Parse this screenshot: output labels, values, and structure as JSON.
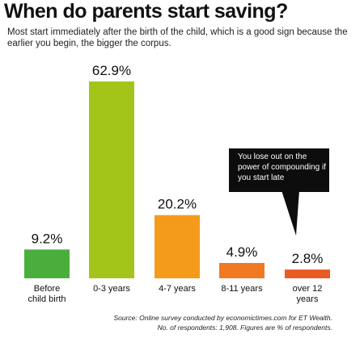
{
  "header": {
    "title": "When do parents start saving?",
    "subtitle": "Most start immediately after the birth of the child, which is a good sign because the earlier you begin, the bigger the corpus."
  },
  "callout": {
    "text": "You lose out on the power of compounding if you start late"
  },
  "footer": {
    "source_line": "Source: Online survey conducted by economictimes.com for ET Wealth.",
    "respondents_line": "No. of respondents: 1,908. Figures are % of respondents."
  },
  "chart_data": {
    "type": "bar",
    "title": "When do parents start saving?",
    "categories": [
      "Before child birth",
      "0-3 years",
      "4-7 years",
      "8-11 years",
      "over 12 years"
    ],
    "category_lines": [
      [
        "Before",
        "child birth"
      ],
      [
        "0-3 years"
      ],
      [
        "4-7 years"
      ],
      [
        "8-11 years"
      ],
      [
        "over 12",
        "years"
      ]
    ],
    "values": [
      9.2,
      62.9,
      20.2,
      4.9,
      2.8
    ],
    "value_labels": [
      "9.2%",
      "62.9%",
      "20.2%",
      "4.9%",
      "2.8%"
    ],
    "colors": [
      "#4aae3c",
      "#a3c51a",
      "#f49b1c",
      "#f07a21",
      "#ea5a23"
    ],
    "unit": "% of respondents",
    "ylim": [
      0,
      62.9
    ],
    "grid": false,
    "legend": "none"
  }
}
